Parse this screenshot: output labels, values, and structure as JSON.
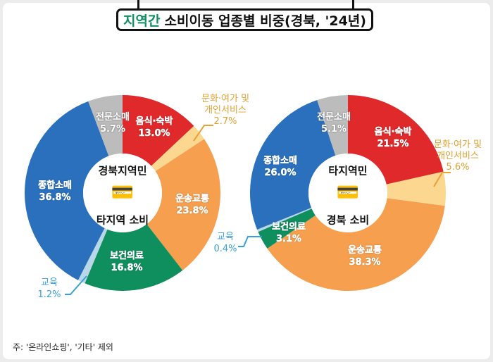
{
  "title": {
    "highlight": "지역간",
    "rest": "소비이동 업종별 비중(경북, '24년)"
  },
  "footnote": "주: '온라인쇼핑', '기타' 제외",
  "colors": {
    "음식·숙박": "#e0292b",
    "문화·여가 및 개인서비스": "#fcd78f",
    "운송교통": "#f6a04f",
    "보건의료": "#0f8f5e",
    "교육": "#b8d7e8",
    "종합소매": "#2a70bd",
    "전문소매": "#bcbcbc"
  },
  "chart_data": [
    {
      "type": "pie",
      "donut": true,
      "center": {
        "line1": "경북지역민",
        "line2": "타지역 소비"
      },
      "categories": [
        "음식·숙박",
        "문화·여가 및 개인서비스",
        "운송교통",
        "보건의료",
        "교육",
        "종합소매",
        "전문소매"
      ],
      "labels": [
        "음식·숙박",
        "문화·여가 및\n개인서비스",
        "운송교통",
        "보건의료",
        "교육",
        "종합소매",
        "전문소매"
      ],
      "values": [
        13.0,
        2.7,
        23.8,
        16.8,
        1.2,
        36.8,
        5.7
      ],
      "value_labels": [
        "13.0%",
        "2.7%",
        "23.8%",
        "16.8%",
        "1.2%",
        "36.8%",
        "5.7%"
      ]
    },
    {
      "type": "pie",
      "donut": true,
      "center": {
        "line1": "타지역민",
        "line2": "경북 소비"
      },
      "categories": [
        "음식·숙박",
        "문화·여가 및 개인서비스",
        "운송교통",
        "보건의료",
        "교육",
        "종합소매",
        "전문소매"
      ],
      "labels": [
        "음식·숙박",
        "문화·여가 및\n개인서비스",
        "운송교통",
        "보건의료",
        "교육",
        "종합소매",
        "전문소매"
      ],
      "values": [
        21.5,
        5.6,
        38.3,
        3.1,
        0.4,
        26.0,
        5.1
      ],
      "value_labels": [
        "21.5%",
        "5.6%",
        "38.3%",
        "3.1%",
        "0.4%",
        "26.0%",
        "5.1%"
      ]
    }
  ]
}
